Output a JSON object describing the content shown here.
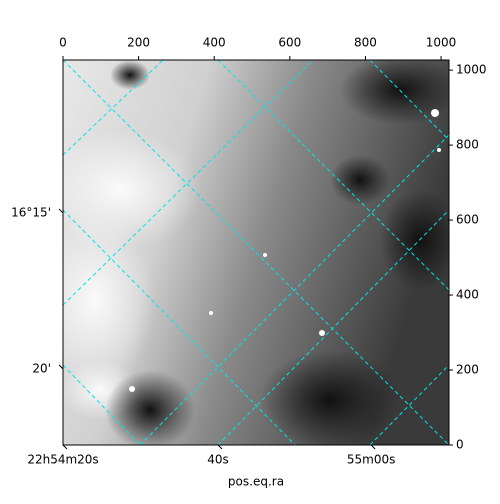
{
  "chart_data": {
    "type": "image",
    "xlabel": "pos.eq.ra",
    "xlim": [
      0,
      1021
    ],
    "xticks": [
      0,
      200,
      400,
      600,
      800,
      1000
    ],
    "ylim": [
      0,
      1027
    ],
    "yticks": [
      0,
      200,
      400,
      600,
      800,
      1000
    ],
    "ra_ticks": [
      {
        "value": 0,
        "label": "22h54m20s"
      },
      {
        "value": 410,
        "label": "40s"
      },
      {
        "value": 815,
        "label": "55m00s"
      }
    ],
    "dec_ticks": [
      {
        "value": 619,
        "label": "16°15'"
      },
      {
        "value": 203,
        "label": "20'"
      }
    ]
  }
}
